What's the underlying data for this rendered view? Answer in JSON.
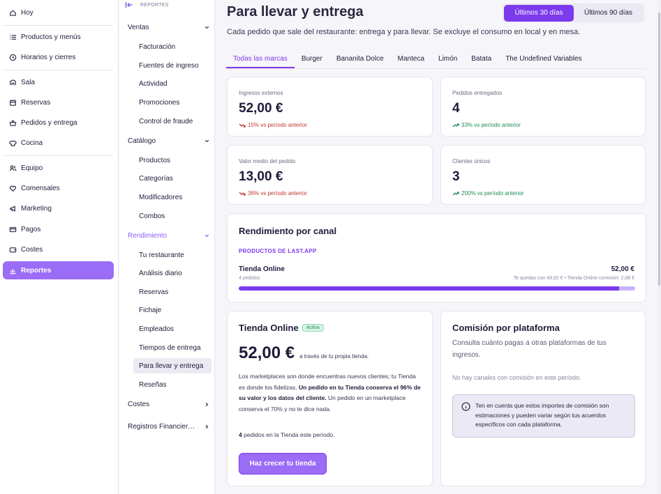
{
  "nav": {
    "items": [
      {
        "label": "Hoy",
        "icon": "home-icon"
      },
      {
        "label": "Productos y menús",
        "icon": "list-icon"
      },
      {
        "label": "Horarios y cierres",
        "icon": "clock-icon"
      },
      {
        "label": "Sala",
        "icon": "room-icon"
      },
      {
        "label": "Reservas",
        "icon": "calendar-icon"
      },
      {
        "label": "Pedidos y entrega",
        "icon": "basket-icon"
      },
      {
        "label": "Cocina",
        "icon": "chef-hat-icon"
      },
      {
        "label": "Equipo",
        "icon": "users-icon"
      },
      {
        "label": "Comensales",
        "icon": "heart-icon"
      },
      {
        "label": "Marketing",
        "icon": "megaphone-icon"
      },
      {
        "label": "Pagos",
        "icon": "card-icon"
      },
      {
        "label": "Costes",
        "icon": "wallet-icon"
      },
      {
        "label": "Reportes",
        "icon": "chart-icon"
      }
    ]
  },
  "subnav": {
    "header": "REPORTES",
    "ventas": {
      "label": "Ventas",
      "items": [
        "Facturación",
        "Fuentes de ingreso",
        "Actividad",
        "Promociones",
        "Control de fraude"
      ]
    },
    "catalogo": {
      "label": "Catálogo",
      "items": [
        "Productos",
        "Categorías",
        "Modificadores",
        "Combos"
      ]
    },
    "rendimiento": {
      "label": "Rendimiento",
      "items": [
        "Tu restaurante",
        "Análisis diario",
        "Reservas",
        "Fichaje",
        "Empleados",
        "Tiempos de entrega",
        "Para llevar y entrega",
        "Reseñas"
      ]
    },
    "costes": {
      "label": "Costes"
    },
    "registros": {
      "label": "Registros Financier…"
    }
  },
  "header": {
    "title": "Para llevar y entrega",
    "subtitle": "Cada pedido que sale del restaurante: entrega y para llevar. Se excluye el consumo en local y en mesa.",
    "range": [
      "Últimos 30 días",
      "Últimos 90 días"
    ]
  },
  "tabs": [
    "Todas las marcas",
    "Burger",
    "Bananita Dolce",
    "Manteca",
    "Limón",
    "Batata",
    "The Undefined Variables"
  ],
  "kpis": [
    {
      "label": "Ingresos externos",
      "value": "52,00 €",
      "delta": "15% vs período anterior",
      "direction": "down"
    },
    {
      "label": "Pedidos entregados",
      "value": "4",
      "delta": "33% vs período anterior",
      "direction": "up"
    },
    {
      "label": "Valor medio del pedido",
      "value": "13,00 €",
      "delta": "36% vs período anterior",
      "direction": "down"
    },
    {
      "label": "Clientes únicos",
      "value": "3",
      "delta": "200% vs período anterior",
      "direction": "up"
    }
  ],
  "canal": {
    "title": "Rendimiento por canal",
    "caption": "PRODUCTOS DE LAST.APP",
    "name": "Tienda Online",
    "orders": "4 pedidos",
    "amount": "52,00 €",
    "note": "Te quedas con 49,92 € • Tienda Online comisión: 2,08 €",
    "kept_fraction": 0.96
  },
  "tienda": {
    "title": "Tienda Online",
    "badge": "Activa",
    "amount": "52,00 €",
    "amount_note": "a través de tu propia tienda.",
    "desc_1": "Los marketplaces son donde encuentras nuevos clientes; tu Tienda es donde los fidelizas. ",
    "desc_bold": "Un pedido en tu Tienda conserva el 96% de su valor y los datos del cliente.",
    "desc_2": " Un pedido en un marketplace conserva el 70% y no te dice nada.",
    "count_num": "4",
    "count_text": " pedidos en la Tienda este período.",
    "cta": "Haz crecer tu tienda"
  },
  "comision": {
    "title": "Comisión por plataforma",
    "desc": "Consulta cuánto pagas a otras plataformas de tus ingresos.",
    "empty": "No hay canales con comisión en este período.",
    "info": "Ten en cuenta que estos importes de comisión son estimaciones y pueden variar según tus acuerdos específicos con cada plataforma."
  },
  "colors": {
    "accent": "#7c3aed",
    "accent_light": "#9b6cf5",
    "positive": "#1e8a55",
    "negative": "#c0392b"
  }
}
